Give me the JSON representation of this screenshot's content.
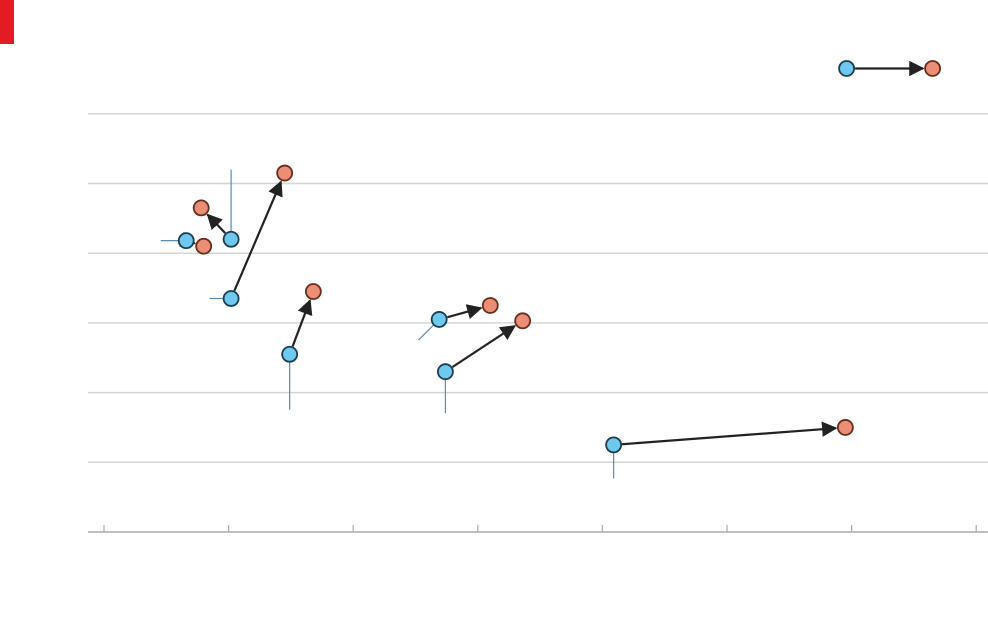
{
  "header": {
    "title": ""
  },
  "colors": {
    "start": "#6fc9ee",
    "end": "#ea8e75",
    "arrow": "#222222",
    "grid": "#d4d4d4",
    "leader": "#5a8ab0"
  },
  "chart_data": {
    "type": "scatter",
    "title": "",
    "xlabel": "",
    "ylabel": "",
    "xlim": [
      0,
      7
    ],
    "ylim": [
      0,
      6
    ],
    "grid": true,
    "x_ticks": [
      0,
      1,
      2,
      3,
      4,
      5,
      6,
      7
    ],
    "series": [
      {
        "role": "start",
        "color": "#6fc9ee"
      },
      {
        "role": "end",
        "color": "#ea8e75"
      }
    ],
    "points": [
      {
        "x0": 5.96,
        "y0": 6.65,
        "x1": 6.65,
        "y1": 6.65
      },
      {
        "x0": 0.66,
        "y0": 4.18,
        "x1": 0.8,
        "y1": 4.1
      },
      {
        "x0": 1.02,
        "y0": 4.2,
        "x1": 0.78,
        "y1": 4.65
      },
      {
        "x0": 1.02,
        "y0": 3.35,
        "x1": 1.45,
        "y1": 5.15
      },
      {
        "x0": 1.49,
        "y0": 2.55,
        "x1": 1.68,
        "y1": 3.45
      },
      {
        "x0": 2.69,
        "y0": 3.05,
        "x1": 3.1,
        "y1": 3.25
      },
      {
        "x0": 2.74,
        "y0": 2.3,
        "x1": 3.36,
        "y1": 3.03
      },
      {
        "x0": 4.09,
        "y0": 1.25,
        "x1": 5.95,
        "y1": 1.5
      }
    ]
  }
}
